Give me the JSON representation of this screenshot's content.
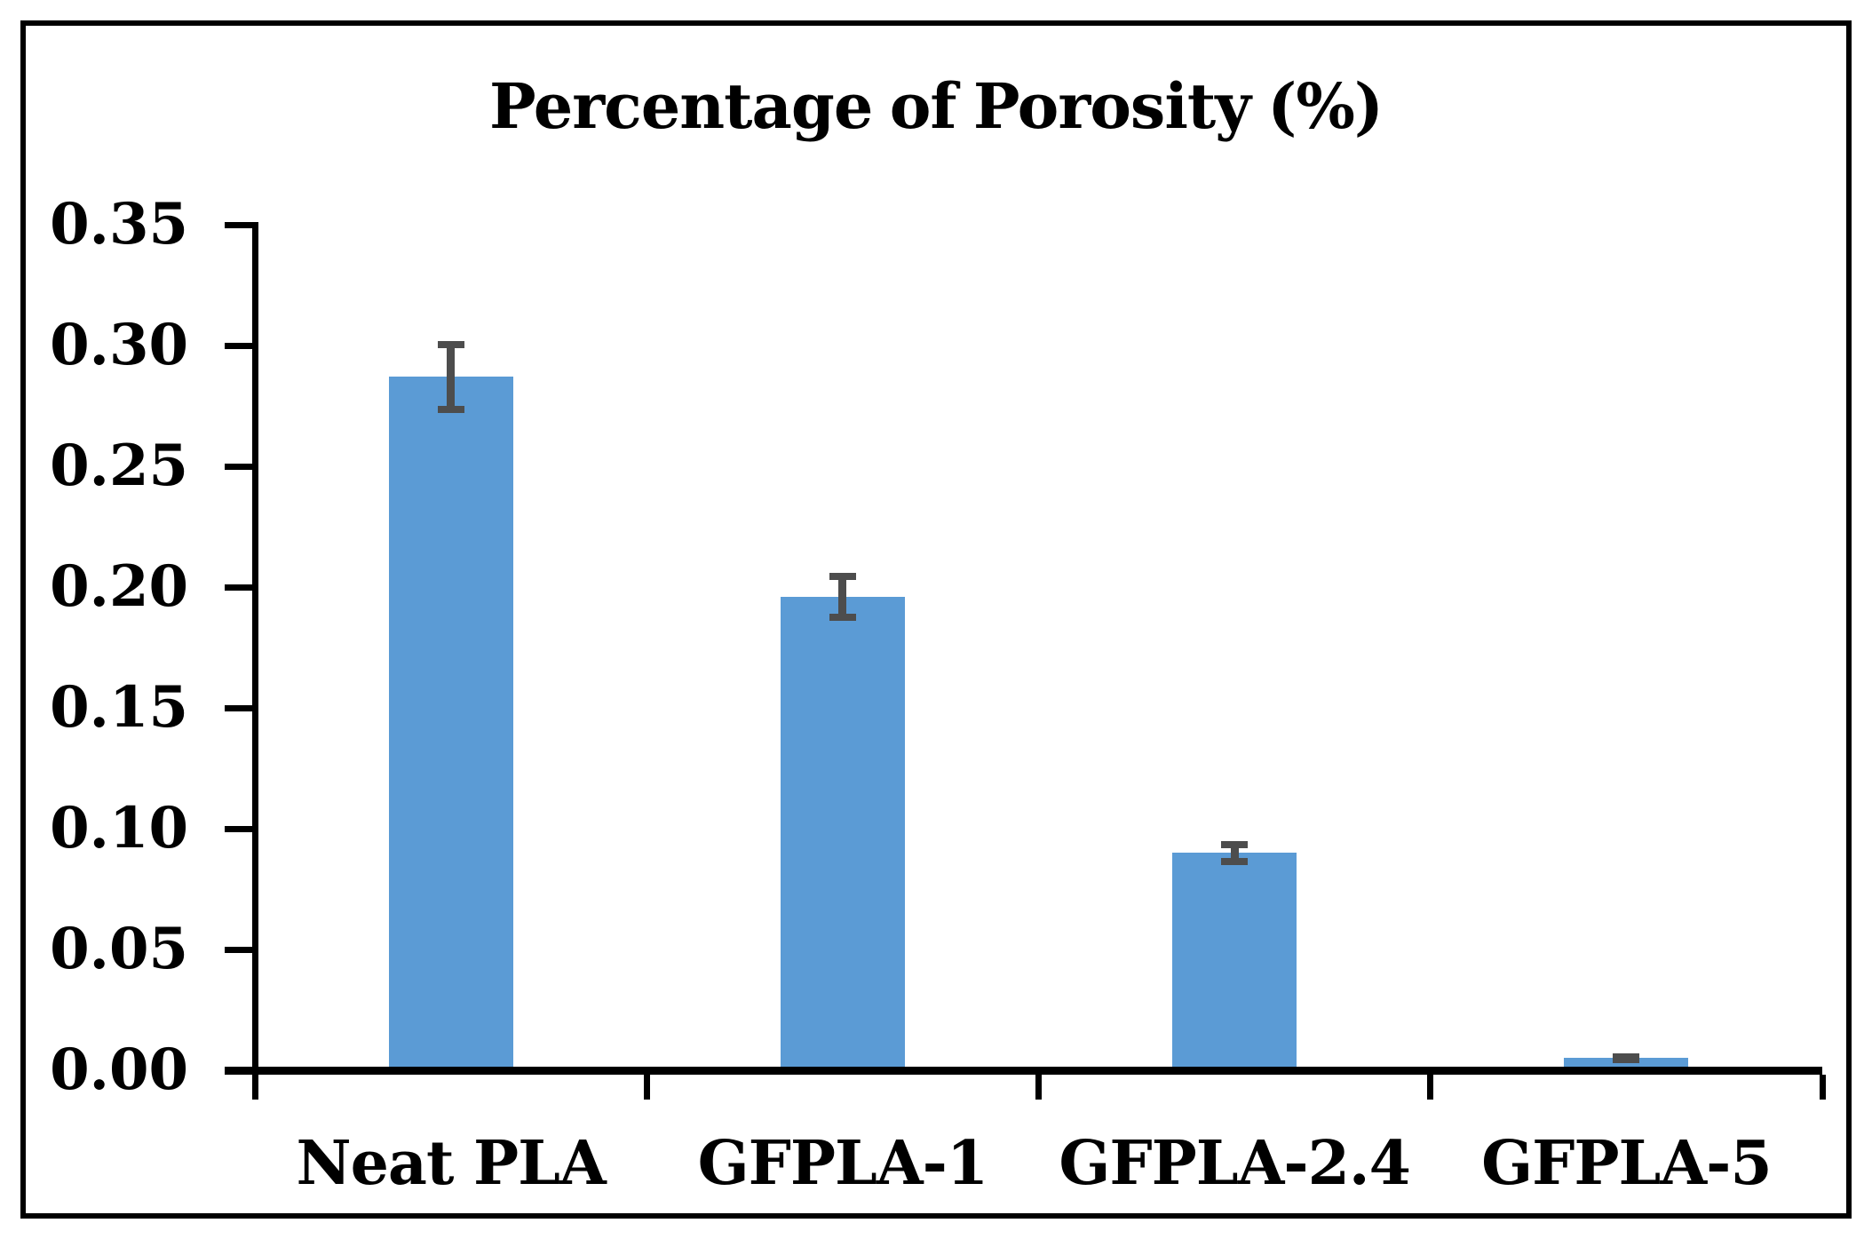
{
  "chart_data": {
    "type": "bar",
    "title": "Percentage of Porosity (%)",
    "categories": [
      "Neat PLA",
      "GFPLA-1",
      "GFPLA-2.4",
      "GFPLA-5"
    ],
    "values": [
      0.287,
      0.196,
      0.09,
      0.005
    ],
    "errors": [
      0.015,
      0.01,
      0.005,
      0.002
    ],
    "y_tick_labels": [
      "0.35",
      "0.30",
      "0.25",
      "0.20",
      "0.15",
      "0.10",
      "0.05",
      "0.00"
    ],
    "ylim": [
      0,
      0.35
    ],
    "y_tick_step": 0.05,
    "xlabel": "",
    "ylabel": "",
    "grid": false,
    "legend": false,
    "error_bars": true,
    "bar_color": "#5B9BD5",
    "error_color": "#4D4D4D",
    "axis_color": "#000000",
    "text_color": "#000000",
    "background_color": "#ffffff",
    "border_color": "#000000"
  }
}
